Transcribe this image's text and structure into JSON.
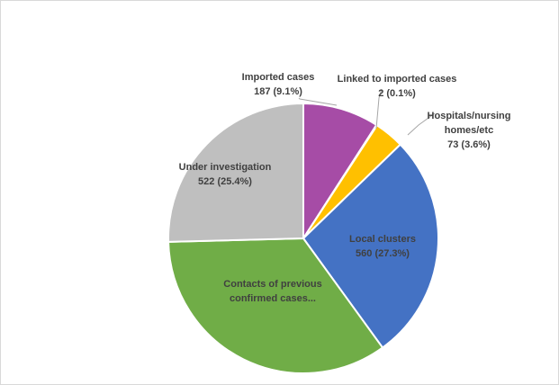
{
  "chart_data": {
    "type": "pie",
    "title": "",
    "slices": [
      {
        "category": "Imported cases",
        "value": 187,
        "percent": "9.1%",
        "color": "#a64ca6",
        "text_color": "#404040",
        "label_lines": [
          "Imported cases",
          "187 (9.1%)"
        ]
      },
      {
        "category": "Linked to imported cases",
        "value": 2,
        "percent": "0.1%",
        "color": "#ed7d31",
        "text_color": "#404040",
        "label_lines": [
          "Linked to imported cases",
          "2 (0.1%)"
        ]
      },
      {
        "category": "Hospitals/nursing homes/etc",
        "value": 73,
        "percent": "3.6%",
        "color": "#ffc000",
        "text_color": "#404040",
        "label_lines": [
          "Hospitals/nursing",
          "homes/etc",
          "73 (3.6%)"
        ]
      },
      {
        "category": "Local clusters",
        "value": 560,
        "percent": "27.3%",
        "color": "#4472c4",
        "text_color": "#404040",
        "label_lines": [
          "Local clusters",
          "560 (27.3%)"
        ]
      },
      {
        "category": "Contacts of previous confirmed cases...",
        "value": 710,
        "percent": "34.6%",
        "color": "#70ad47",
        "text_color": "#404040",
        "label_lines": [
          "Contacts of previous",
          "confirmed cases..."
        ]
      },
      {
        "category": "Under investigation",
        "value": 522,
        "percent": "25.4%",
        "color": "#bfbfbf",
        "text_color": "#404040",
        "label_lines": [
          "Under investigation",
          "522 (25.4%)"
        ]
      }
    ],
    "start_angle": "12 o'clock",
    "direction": "clockwise",
    "legend": "none"
  }
}
